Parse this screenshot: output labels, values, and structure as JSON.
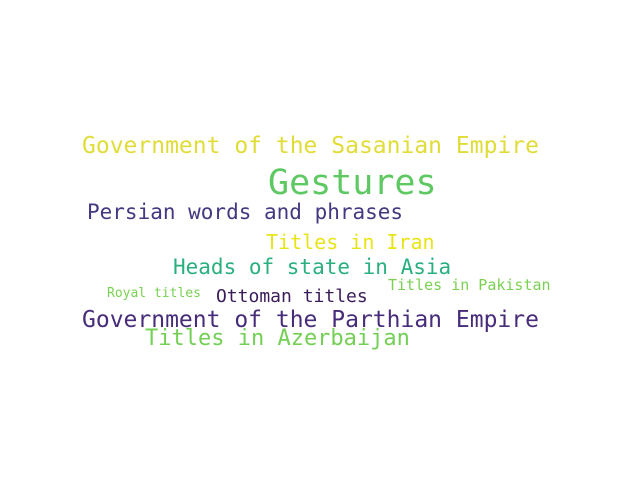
{
  "word_cloud": {
    "words": [
      {
        "id": "sasanian",
        "text": "Government of the Sasanian Empire",
        "color": "#e0dd38"
      },
      {
        "id": "gestures",
        "text": "Gestures",
        "color": "#5ec962"
      },
      {
        "id": "persian",
        "text": "Persian words and phrases",
        "color": "#453882"
      },
      {
        "id": "iran",
        "text": "Titles in Iran",
        "color": "#e7e419"
      },
      {
        "id": "heads",
        "text": "Heads of state in Asia",
        "color": "#2ab07f"
      },
      {
        "id": "pakistan",
        "text": "Titles in Pakistan",
        "color": "#7ad151"
      },
      {
        "id": "royal",
        "text": "Royal titles",
        "color": "#7ad151"
      },
      {
        "id": "ottoman",
        "text": "Ottoman titles",
        "color": "#3b1c5b"
      },
      {
        "id": "parthian",
        "text": "Government of the Parthian Empire",
        "color": "#472c7a"
      },
      {
        "id": "azerbaijan",
        "text": "Titles in Azerbaijan",
        "color": "#73d055"
      }
    ]
  }
}
